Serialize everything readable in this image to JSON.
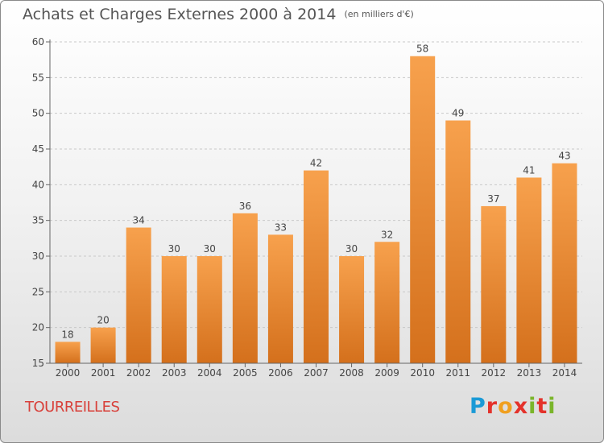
{
  "header": {
    "title": "Achats et Charges Externes 2000 à 2014",
    "unit": "(en milliers d'€)"
  },
  "commune": "TOURREILLES",
  "logo": {
    "text": "Proxiti",
    "colors": [
      "#1a9ad6",
      "#e4322b",
      "#f0a020",
      "#7ab52a"
    ]
  },
  "chart_data": {
    "type": "bar",
    "title": "Achats et Charges Externes 2000 à 2014",
    "subtitle": "(en milliers d'€)",
    "categories": [
      "2000",
      "2001",
      "2002",
      "2003",
      "2004",
      "2005",
      "2006",
      "2007",
      "2008",
      "2009",
      "2010",
      "2011",
      "2012",
      "2013",
      "2014"
    ],
    "values": [
      18,
      20,
      34,
      30,
      30,
      36,
      33,
      42,
      30,
      32,
      58,
      49,
      37,
      41,
      43
    ],
    "ylim": [
      15,
      60
    ],
    "yticks": [
      15,
      20,
      25,
      30,
      35,
      40,
      45,
      50,
      55,
      60
    ],
    "grid": "horizontal dashed",
    "bar_color_top": "#f7a14d",
    "bar_color_bottom": "#d4701c"
  }
}
